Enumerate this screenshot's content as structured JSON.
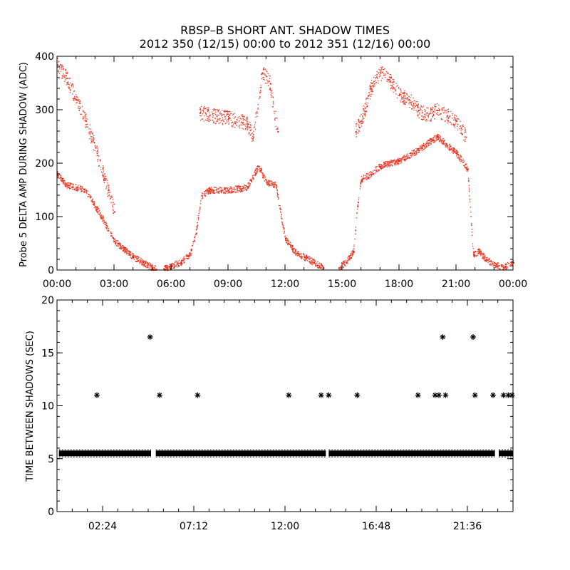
{
  "title": "RBSP–B SHORT ANT. SHADOW TIMES",
  "subtitle": "2012 350 (12/15) 00:00 to 2012 351 (12/16) 00:00",
  "colors": {
    "scatter_red": "#e8321e",
    "axis": "#000000",
    "star": "#000000"
  },
  "chart_data": [
    {
      "type": "scatter",
      "ylabel": "Probe 5 DELTA AMP DURING SHADOW (ADC)",
      "xlabel": "",
      "xlim": [
        0,
        24
      ],
      "ylim": [
        0,
        400
      ],
      "x_tick_labels": [
        "00:00",
        "03:00",
        "06:00",
        "09:00",
        "12:00",
        "15:00",
        "18:00",
        "21:00",
        "00:00"
      ],
      "y_tick_labels": [
        "0",
        "100",
        "200",
        "300",
        "400"
      ],
      "marker": "dot",
      "series": [
        {
          "band": "lower",
          "x": [
            0.0,
            0.5,
            1.0,
            1.5,
            2.0,
            2.5,
            3.0,
            3.5,
            4.0,
            4.5,
            5.0,
            5.2
          ],
          "y": [
            180,
            160,
            155,
            150,
            120,
            90,
            55,
            40,
            25,
            15,
            5,
            2
          ]
        },
        {
          "band": "upper",
          "x": [
            0.0,
            0.5,
            1.0,
            1.5,
            2.0,
            2.5,
            3.0
          ],
          "y": [
            385,
            360,
            320,
            280,
            230,
            170,
            110
          ]
        },
        {
          "band": "lower",
          "x": [
            5.6,
            6.0,
            6.5,
            7.0,
            7.3,
            7.6,
            8.0,
            9.0,
            10.0,
            10.6,
            11.0,
            11.5,
            12.0,
            12.5,
            13.0,
            13.5,
            14.0
          ],
          "y": [
            3,
            8,
            15,
            30,
            70,
            140,
            150,
            150,
            155,
            195,
            165,
            160,
            60,
            35,
            25,
            15,
            5
          ]
        },
        {
          "band": "upper",
          "x": [
            7.5,
            8.0,
            9.0,
            10.0,
            10.3,
            10.8,
            11.2,
            11.6
          ],
          "y": [
            295,
            290,
            285,
            275,
            250,
            370,
            350,
            260
          ]
        },
        {
          "band": "lower",
          "x": [
            14.8,
            15.2,
            15.6,
            15.8,
            16.0,
            16.5,
            17.0,
            18.0,
            19.0,
            20.0,
            21.0,
            21.6,
            21.9,
            22.2,
            22.6,
            23.0,
            23.5,
            24.0
          ],
          "y": [
            5,
            15,
            35,
            120,
            170,
            180,
            195,
            205,
            225,
            250,
            220,
            190,
            30,
            35,
            20,
            10,
            5,
            15
          ]
        },
        {
          "band": "upper",
          "x": [
            15.7,
            16.0,
            16.5,
            17.0,
            17.5,
            18.0,
            18.5,
            19.0,
            19.5,
            20.0,
            20.5,
            21.0,
            21.5
          ],
          "y": [
            260,
            280,
            340,
            370,
            355,
            330,
            320,
            300,
            290,
            300,
            290,
            280,
            250
          ]
        }
      ]
    },
    {
      "type": "scatter",
      "ylabel": "TIME BETWEEN SHADOWS (SEC)",
      "xlabel": "",
      "xlim": [
        0,
        24
      ],
      "ylim": [
        0,
        20
      ],
      "x_tick_labels": [
        "02:24",
        "07:12",
        "12:00",
        "16:48",
        "21:36"
      ],
      "y_tick_labels": [
        "0",
        "5",
        "10",
        "15",
        "20"
      ],
      "marker": "asterisk",
      "baseline": {
        "y": 5.5,
        "x_segments": [
          [
            0.1,
            4.95
          ],
          [
            5.2,
            14.15
          ],
          [
            14.3,
            23.05
          ],
          [
            23.25,
            24.0
          ]
        ]
      },
      "points": {
        "x": [
          2.1,
          4.9,
          5.4,
          7.4,
          12.2,
          13.9,
          14.3,
          15.8,
          19.0,
          19.9,
          20.1,
          20.3,
          20.45,
          21.9,
          22.0,
          22.95,
          23.5,
          23.75,
          23.95
        ],
        "y": [
          11.0,
          16.5,
          11.0,
          11.0,
          11.0,
          11.0,
          11.0,
          11.0,
          11.0,
          11.0,
          11.0,
          16.5,
          11.0,
          16.5,
          11.0,
          11.0,
          11.0,
          11.0,
          11.0
        ]
      }
    }
  ]
}
